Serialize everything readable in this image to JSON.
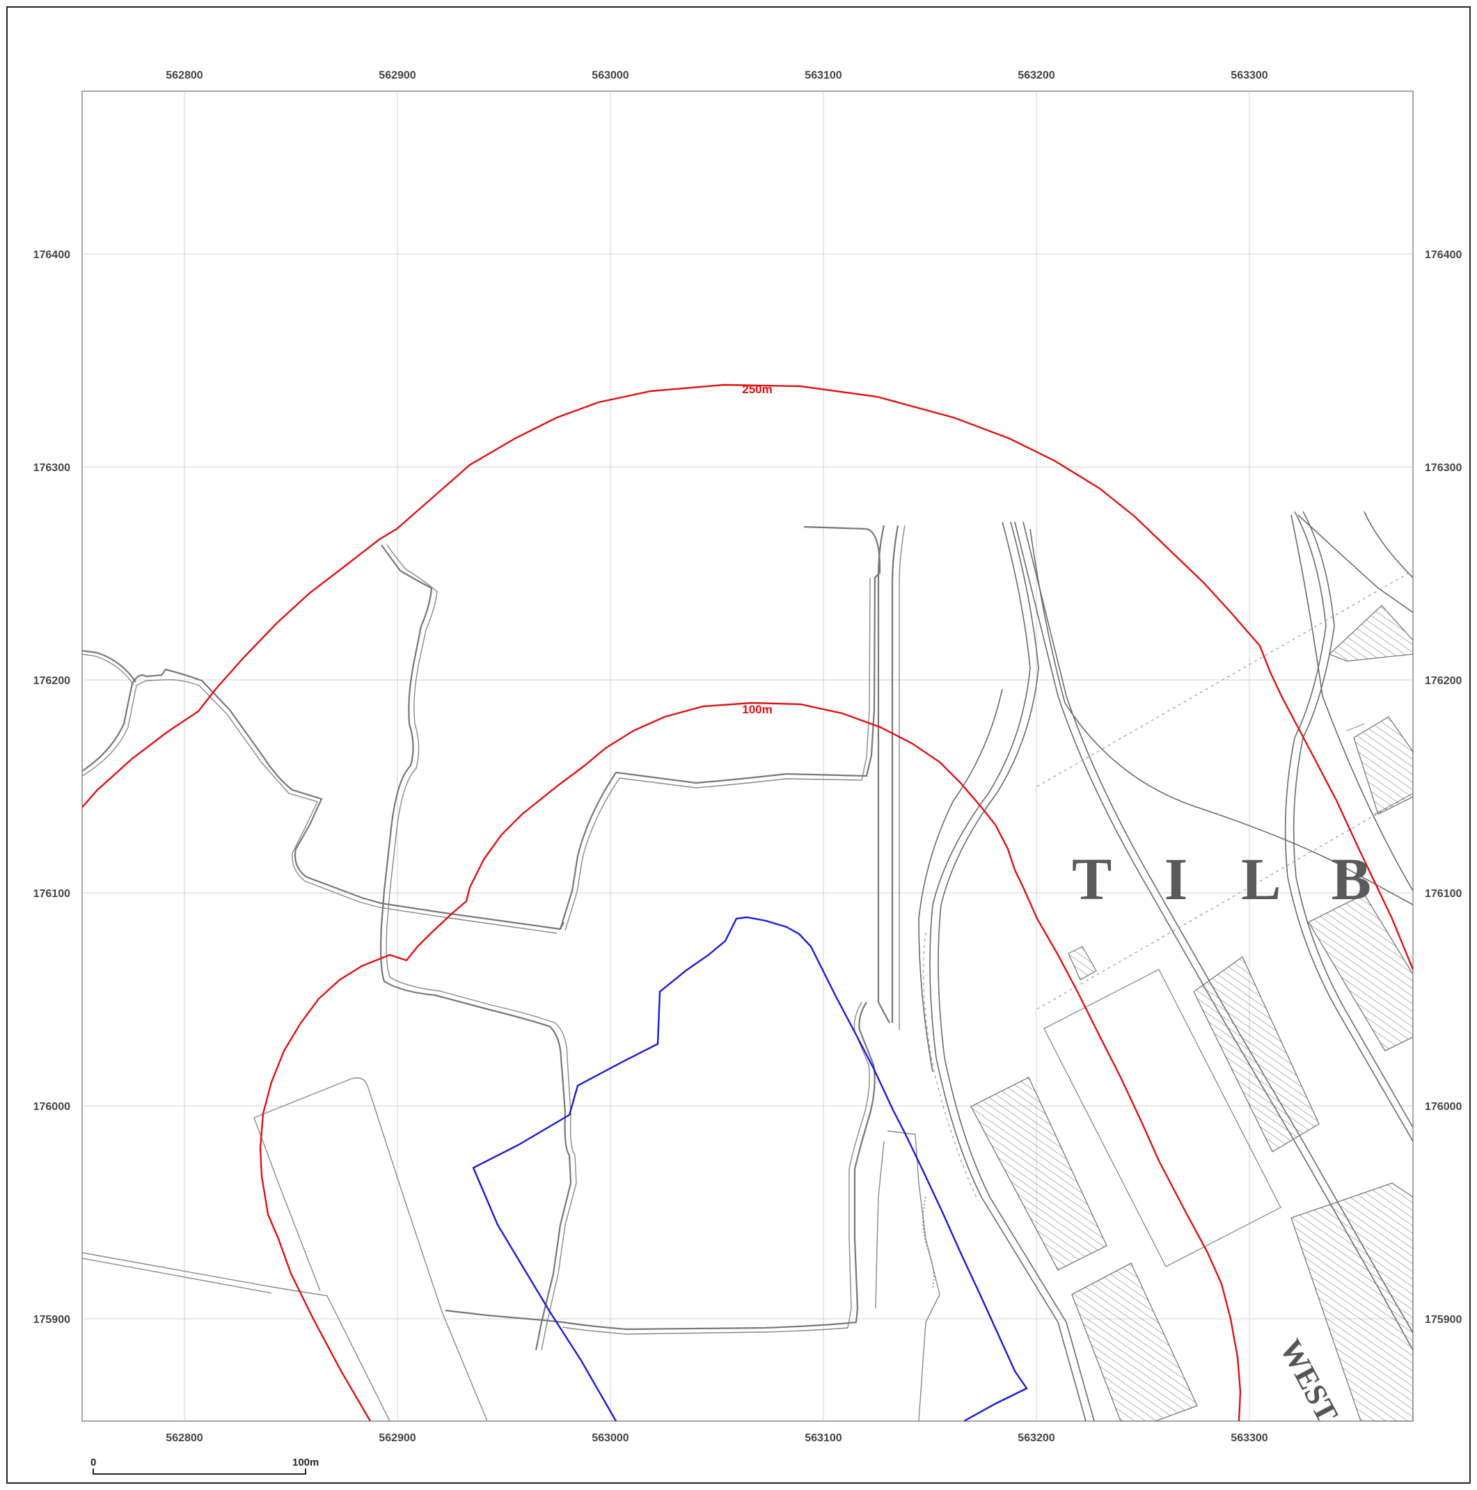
{
  "map": {
    "easting_labels": [
      "562800",
      "562900",
      "563000",
      "563100",
      "563200",
      "563300"
    ],
    "northing_labels": [
      "176400",
      "176300",
      "176200",
      "176100",
      "176000",
      "175900"
    ],
    "buffer_labels": [
      "250m",
      "100m"
    ],
    "place_labels": {
      "town": "T I L B",
      "street": "WEST"
    },
    "scale_bar": {
      "start": "0",
      "end": "100m"
    },
    "colors": {
      "buffer": "#e01010",
      "site_boundary": "#1a1ad6",
      "base_map": "#777777",
      "grid": "#d2d2d2"
    }
  }
}
